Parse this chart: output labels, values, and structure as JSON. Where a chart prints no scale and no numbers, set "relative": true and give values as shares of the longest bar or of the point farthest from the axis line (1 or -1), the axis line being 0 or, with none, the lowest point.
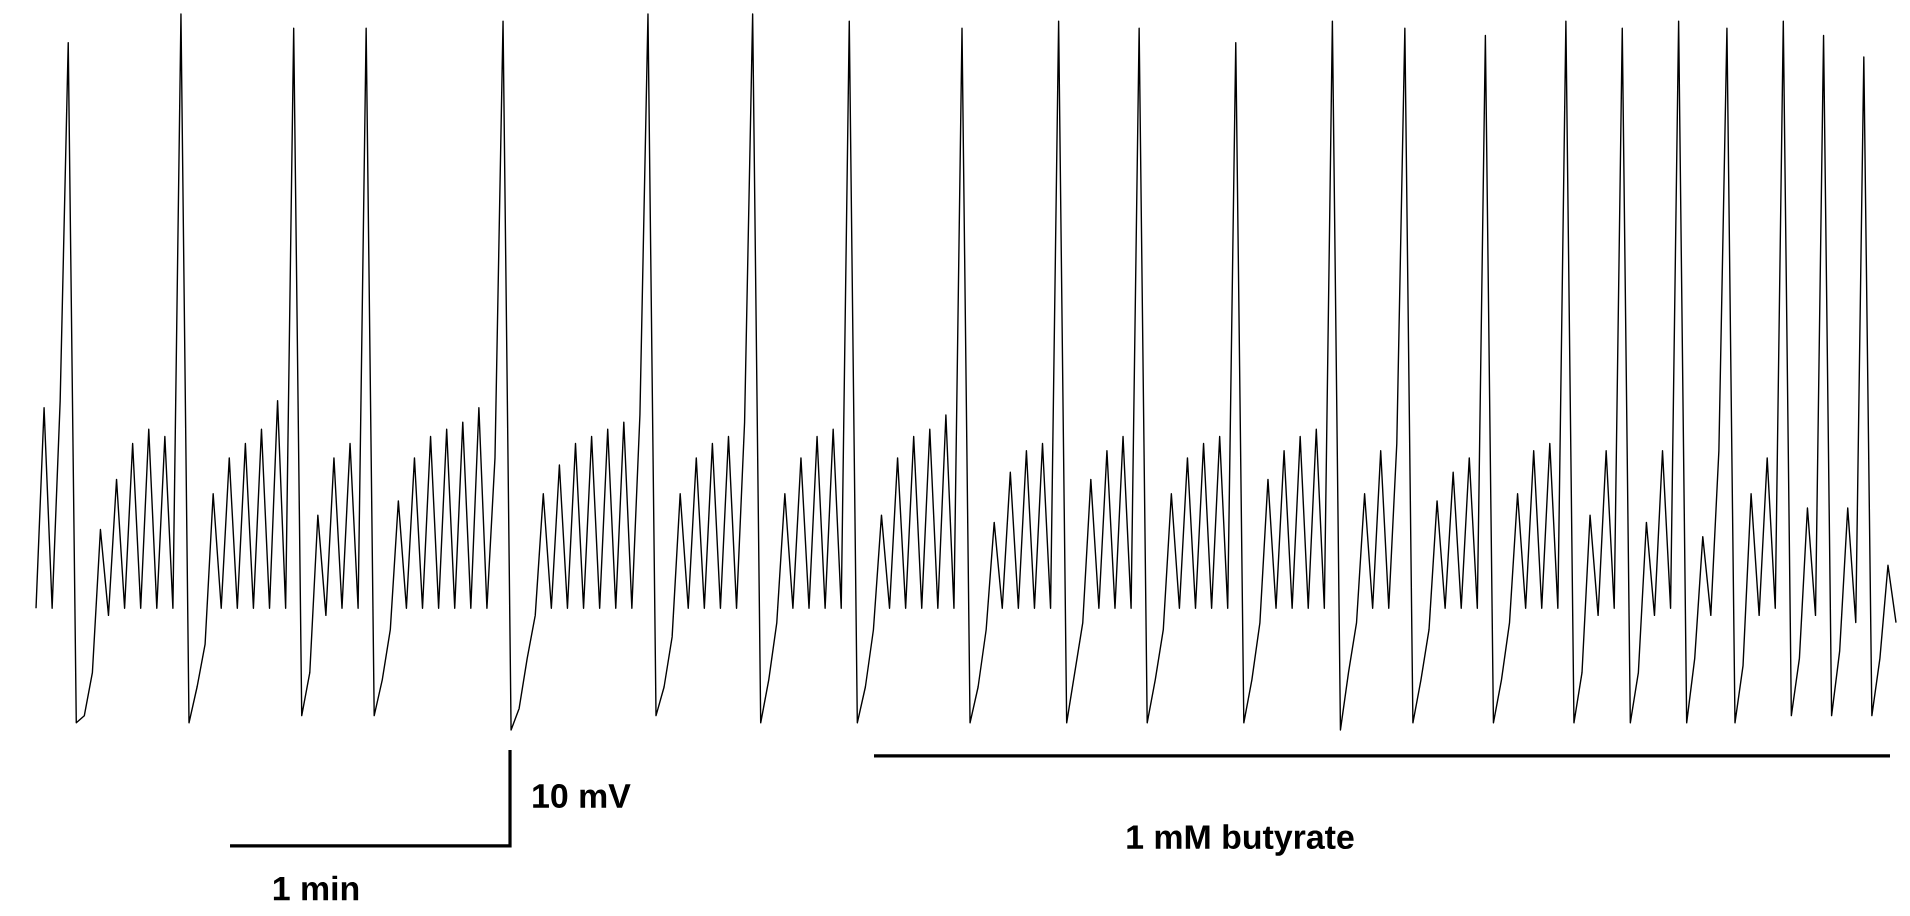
{
  "chart_data": {
    "type": "line",
    "relative": true,
    "categories": [
      null,
      null,
      null,
      null,
      null,
      null,
      null,
      null,
      null,
      null,
      null,
      null,
      null,
      null,
      null,
      null,
      null,
      null,
      null,
      null,
      null,
      null,
      null,
      null,
      null,
      null,
      null,
      null,
      null,
      null,
      null,
      null,
      null,
      null,
      null,
      null,
      null,
      null,
      null,
      null,
      null,
      null,
      null,
      null,
      null,
      null,
      null,
      null,
      null,
      null,
      null,
      null,
      null,
      null,
      null,
      null,
      null,
      null,
      null,
      null,
      null,
      null,
      null,
      null,
      null,
      null,
      null,
      null,
      null,
      null,
      null,
      null,
      null,
      null,
      null,
      null,
      null,
      null,
      null,
      null,
      null,
      null,
      null,
      null,
      null,
      null,
      null,
      null,
      null,
      null,
      null,
      null,
      null,
      null,
      null,
      null,
      null,
      null,
      null,
      null,
      null,
      null,
      null,
      null,
      null,
      null,
      null,
      null,
      null,
      null,
      null,
      null,
      null,
      null,
      null,
      null,
      null,
      null,
      null,
      null,
      null,
      null,
      null,
      null,
      null,
      null,
      null,
      null,
      null,
      null,
      null,
      null,
      null,
      null,
      null,
      null,
      null,
      null,
      null,
      null,
      null,
      null,
      null,
      null,
      null,
      null,
      null,
      null,
      null,
      null,
      null,
      null,
      null,
      null,
      null,
      null,
      null,
      null,
      null,
      null,
      null,
      null,
      null,
      null,
      null,
      null,
      null,
      null,
      null,
      null,
      null,
      null,
      null,
      null,
      null,
      null,
      null,
      null,
      null,
      null,
      null,
      null,
      null,
      null,
      null,
      null,
      null,
      null,
      null,
      null,
      null,
      null,
      null,
      null,
      null,
      null,
      null,
      null,
      null,
      null,
      null,
      null,
      null,
      null,
      null,
      null,
      null,
      null,
      null,
      null,
      null,
      null,
      null,
      null,
      null,
      null,
      null,
      null,
      null,
      null,
      null,
      null,
      null,
      null,
      null,
      null,
      null,
      null,
      null,
      null,
      null,
      null
    ],
    "series": [
      {
        "color": "#000000",
        "values": [
          0.17,
          0.45,
          0.17,
          0.46,
          0.96,
          0.01,
          0.02,
          0.08,
          0.28,
          0.16,
          0.35,
          0.17,
          0.4,
          0.17,
          0.42,
          0.17,
          0.41,
          0.17,
          1.0,
          0.01,
          0.06,
          0.12,
          0.33,
          0.17,
          0.38,
          0.17,
          0.4,
          0.17,
          0.42,
          0.17,
          0.46,
          0.17,
          0.98,
          0.02,
          0.08,
          0.3,
          0.16,
          0.38,
          0.17,
          0.4,
          0.17,
          0.98,
          0.02,
          0.07,
          0.14,
          0.32,
          0.17,
          0.38,
          0.17,
          0.41,
          0.17,
          0.42,
          0.17,
          0.43,
          0.17,
          0.45,
          0.17,
          0.38,
          0.99,
          0.0,
          0.03,
          0.1,
          0.16,
          0.33,
          0.17,
          0.37,
          0.17,
          0.4,
          0.17,
          0.41,
          0.17,
          0.42,
          0.17,
          0.43,
          0.17,
          0.44,
          1.0,
          0.02,
          0.06,
          0.13,
          0.33,
          0.17,
          0.38,
          0.17,
          0.4,
          0.17,
          0.41,
          0.17,
          0.43,
          1.0,
          0.01,
          0.07,
          0.15,
          0.33,
          0.17,
          0.38,
          0.17,
          0.41,
          0.17,
          0.42,
          0.17,
          0.99,
          0.01,
          0.06,
          0.14,
          0.3,
          0.17,
          0.38,
          0.17,
          0.41,
          0.17,
          0.42,
          0.17,
          0.44,
          0.17,
          0.98,
          0.01,
          0.06,
          0.14,
          0.29,
          0.17,
          0.36,
          0.17,
          0.39,
          0.17,
          0.4,
          0.17,
          0.99,
          0.01,
          0.08,
          0.15,
          0.35,
          0.17,
          0.39,
          0.17,
          0.41,
          0.17,
          0.98,
          0.01,
          0.07,
          0.14,
          0.33,
          0.17,
          0.38,
          0.17,
          0.4,
          0.17,
          0.41,
          0.17,
          0.96,
          0.01,
          0.07,
          0.15,
          0.35,
          0.17,
          0.39,
          0.17,
          0.41,
          0.17,
          0.42,
          0.17,
          0.99,
          0.0,
          0.08,
          0.15,
          0.33,
          0.17,
          0.39,
          0.17,
          0.4,
          0.98,
          0.01,
          0.07,
          0.14,
          0.32,
          0.17,
          0.36,
          0.17,
          0.38,
          0.17,
          0.97,
          0.01,
          0.07,
          0.15,
          0.33,
          0.17,
          0.39,
          0.17,
          0.4,
          0.17,
          0.99,
          0.01,
          0.08,
          0.3,
          0.16,
          0.39,
          0.17,
          0.98,
          0.01,
          0.08,
          0.29,
          0.16,
          0.39,
          0.17,
          0.99,
          0.01,
          0.1,
          0.27,
          0.16,
          0.39,
          0.98,
          0.01,
          0.09,
          0.33,
          0.16,
          0.38,
          0.17,
          0.99,
          0.02,
          0.1,
          0.31,
          0.16,
          0.97,
          0.02,
          0.11,
          0.31,
          0.15,
          0.94,
          0.02,
          0.1,
          0.23,
          0.15
        ]
      }
    ],
    "annotations": [
      "10 mV",
      "1 min",
      "1 mM butyrate"
    ]
  }
}
